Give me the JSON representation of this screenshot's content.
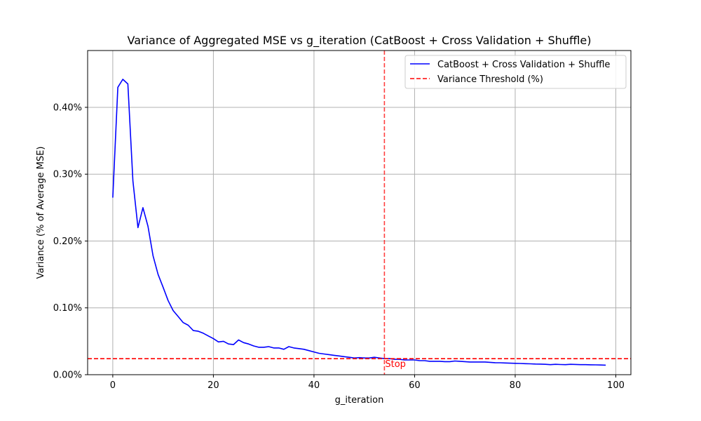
{
  "chart_data": {
    "type": "line",
    "title": "Variance of Aggregated MSE vs g_iteration (CatBoost + Cross Validation + Shuffle)",
    "xlabel": "g_iteration",
    "ylabel": "Variance (% of Average MSE)",
    "xlim": [
      -5,
      103
    ],
    "ylim": [
      0,
      0.485
    ],
    "xticks": [
      0,
      20,
      40,
      60,
      80,
      100
    ],
    "xtick_labels": [
      "0",
      "20",
      "40",
      "60",
      "80",
      "100"
    ],
    "yticks": [
      0,
      0.1,
      0.2,
      0.3,
      0.4
    ],
    "ytick_labels": [
      "0.00%",
      "0.10%",
      "0.20%",
      "0.30%",
      "0.40%"
    ],
    "grid": true,
    "legend_position": "top-right",
    "series": [
      {
        "name": "CatBoost + Cross Validation + Shuffle",
        "color": "#0000ff",
        "style": "solid",
        "x": [
          0,
          1,
          2,
          3,
          4,
          5,
          6,
          7,
          8,
          9,
          10,
          11,
          12,
          13,
          14,
          15,
          16,
          17,
          18,
          19,
          20,
          21,
          22,
          23,
          24,
          25,
          26,
          27,
          28,
          29,
          30,
          31,
          32,
          33,
          34,
          35,
          36,
          37,
          38,
          39,
          40,
          41,
          42,
          43,
          44,
          45,
          46,
          47,
          48,
          49,
          50,
          51,
          52,
          53,
          54,
          55,
          56,
          57,
          58,
          59,
          60,
          61,
          62,
          63,
          64,
          65,
          66,
          67,
          68,
          69,
          70,
          71,
          72,
          73,
          74,
          75,
          76,
          77,
          78,
          79,
          80,
          81,
          82,
          83,
          84,
          85,
          86,
          87,
          88,
          89,
          90,
          91,
          92,
          93,
          94,
          95,
          96,
          97,
          98
        ],
        "y": [
          0.265,
          0.43,
          0.442,
          0.435,
          0.29,
          0.22,
          0.25,
          0.222,
          0.178,
          0.15,
          0.131,
          0.111,
          0.096,
          0.087,
          0.078,
          0.074,
          0.066,
          0.065,
          0.062,
          0.058,
          0.054,
          0.049,
          0.05,
          0.046,
          0.045,
          0.052,
          0.048,
          0.046,
          0.043,
          0.041,
          0.041,
          0.042,
          0.04,
          0.04,
          0.038,
          0.042,
          0.04,
          0.039,
          0.038,
          0.036,
          0.034,
          0.032,
          0.031,
          0.03,
          0.029,
          0.028,
          0.027,
          0.026,
          0.025,
          0.0255,
          0.025,
          0.025,
          0.026,
          0.025,
          0.024,
          0.024,
          0.023,
          0.023,
          0.022,
          0.022,
          0.022,
          0.021,
          0.021,
          0.02,
          0.02,
          0.02,
          0.0195,
          0.0195,
          0.0205,
          0.02,
          0.0195,
          0.019,
          0.019,
          0.019,
          0.019,
          0.0185,
          0.018,
          0.0178,
          0.0175,
          0.0172,
          0.017,
          0.0168,
          0.0165,
          0.0163,
          0.016,
          0.0158,
          0.0155,
          0.015,
          0.0155,
          0.0152,
          0.015,
          0.0155,
          0.0153,
          0.015,
          0.015,
          0.0148,
          0.0147,
          0.0145,
          0.0143
        ]
      },
      {
        "name": "Variance Threshold (%)",
        "color": "#ff0000",
        "style": "dashed",
        "orientation": "horizontal",
        "value": 0.024
      }
    ],
    "annotations": [
      {
        "type": "vertical-line",
        "x": 54,
        "color": "#ff0000",
        "style": "dashed",
        "label": "Stop",
        "label_y": 0.016
      }
    ]
  }
}
